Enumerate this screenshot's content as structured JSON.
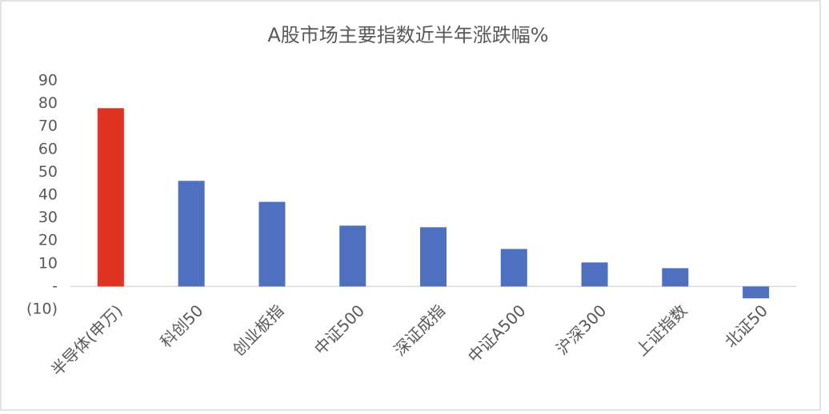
{
  "chart_data": {
    "type": "bar",
    "title": "A股市场主要指数近半年涨跌幅%",
    "categories": [
      "半导体(申万)",
      "科创50",
      "创业板指",
      "中证500",
      "深证成指",
      "中证A500",
      "沪深300",
      "上证指数",
      "北证50"
    ],
    "values": [
      78,
      46.2,
      37,
      26.6,
      25.9,
      16.4,
      10.5,
      8,
      -5.2
    ],
    "colors": [
      "#e03423",
      "#4f6fbf",
      "#4f6fbf",
      "#4f6fbf",
      "#4f6fbf",
      "#4f6fbf",
      "#4f6fbf",
      "#4f6fbf",
      "#4f6fbf"
    ],
    "ylim": [
      -10,
      90
    ],
    "yticks": [
      {
        "value": -10,
        "label": "(10)"
      },
      {
        "value": 0,
        "label": "-"
      },
      10,
      20,
      30,
      40,
      50,
      60,
      70,
      80,
      90
    ],
    "grid": false
  }
}
